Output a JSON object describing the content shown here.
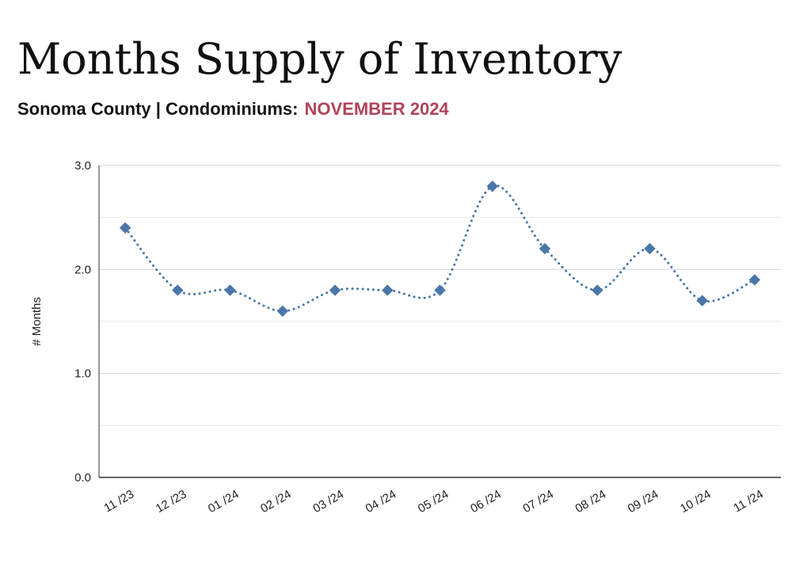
{
  "header": {
    "title": "Months Supply of Inventory",
    "subtitle": "Sonoma County | Condominiums:",
    "period": "NOVEMBER 2024"
  },
  "colors": {
    "title": "#111111",
    "subtitle": "#141414",
    "period": "#b0445a",
    "series": "#4a77a8",
    "grid": "#d9d9d9",
    "axis": "#333333",
    "tick_text": "#222222"
  },
  "chart_data": {
    "type": "line",
    "title": "Months Supply of Inventory",
    "xlabel": "",
    "ylabel": "# Months",
    "categories": [
      "11 /23",
      "12 /23",
      "01 /24",
      "02 /24",
      "03 /24",
      "04 /24",
      "05 /24",
      "06 /24",
      "07 /24",
      "08 /24",
      "09 /24",
      "10 /24",
      "11 /24"
    ],
    "series": [
      {
        "values": [
          2.4,
          1.8,
          1.8,
          1.6,
          1.8,
          1.8,
          1.8,
          2.8,
          2.2,
          1.8,
          2.2,
          1.7,
          1.9
        ],
        "marker": "diamond",
        "line_style": "dotted",
        "smooth": true
      }
    ],
    "ylim": [
      0,
      3
    ],
    "yticks": [
      0,
      1,
      2,
      3
    ],
    "ytick_labels": [
      "0.0",
      "1.0",
      "2.0",
      "3.0"
    ],
    "minor_gridlines": [
      0.5,
      1.5,
      2.5
    ],
    "grid": true,
    "legend": "none"
  }
}
